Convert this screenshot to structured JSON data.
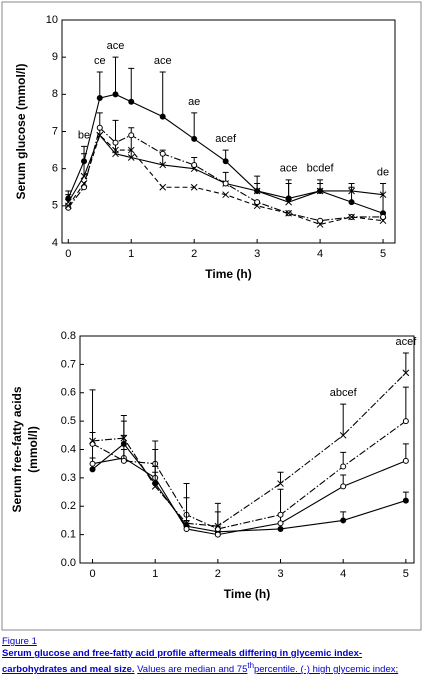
{
  "chart_data": [
    {
      "type": "line",
      "xlabel": "Time (h)",
      "ylabel": "Serum glucose (mmol/l)",
      "x": [
        0,
        0.25,
        0.5,
        0.75,
        1,
        1.5,
        2,
        2.5,
        3,
        3.5,
        4,
        4.5,
        5
      ],
      "xlim": [
        -0.1,
        5.19
      ],
      "xticks": [
        0,
        1,
        2,
        3,
        4,
        5
      ],
      "ylim": [
        4,
        10
      ],
      "yticks": [
        4,
        5,
        6,
        7,
        8,
        9,
        10
      ],
      "series": [
        {
          "color": "#000000",
          "marker": "filled",
          "dash": "solid",
          "values": [
            5.2,
            6.2,
            7.9,
            8.0,
            7.8,
            7.4,
            6.8,
            6.2,
            5.4,
            5.2,
            5.4,
            5.1,
            4.8
          ],
          "upper": [
            5.4,
            6.6,
            8.6,
            9.0,
            8.7,
            8.6,
            7.5,
            6.5,
            5.8,
            5.7,
            5.7,
            5.6,
            5.6
          ]
        },
        {
          "color": "#000000",
          "marker": "cross",
          "dash": "solid",
          "values": [
            5.1,
            5.8,
            6.9,
            6.4,
            6.3,
            6.1,
            6.0,
            5.6,
            5.4,
            5.1,
            5.4,
            5.4,
            5.3
          ],
          "upper": [
            5.3,
            6.4,
            7.5,
            7.3,
            7.1,
            6.5,
            6.3,
            5.9,
            5.6,
            5.6,
            5.6,
            5.5,
            5.6
          ]
        },
        {
          "color": "#000000",
          "marker": "open",
          "dash": "dashdot",
          "values": [
            4.95,
            5.5,
            7.1,
            6.7,
            6.9,
            6.4,
            6.1,
            5.6,
            5.1,
            4.8,
            4.6,
            4.7,
            4.7
          ]
        },
        {
          "color": "#000000",
          "marker": "cross",
          "dash": "dash",
          "values": [
            5.0,
            5.6,
            6.9,
            6.5,
            6.5,
            5.5,
            5.5,
            5.3,
            5.0,
            4.8,
            4.5,
            4.7,
            4.6
          ]
        }
      ],
      "annotations": [
        {
          "x": 0.25,
          "text": "be"
        },
        {
          "x": 0.5,
          "text": "ce"
        },
        {
          "x": 0.75,
          "text": "ace"
        },
        {
          "x": 1.5,
          "text": "ace"
        },
        {
          "x": 2,
          "text": "ae"
        },
        {
          "x": 2.5,
          "text": "acef"
        },
        {
          "x": 3.5,
          "text": "ace"
        },
        {
          "x": 4,
          "text": "bcdef"
        },
        {
          "x": 5,
          "text": "de"
        }
      ]
    },
    {
      "type": "line",
      "xlabel": "Time (h)",
      "ylabel": [
        "Serum free-fatty acids",
        "(mmol/l)"
      ],
      "x": [
        0,
        0.5,
        1,
        1.5,
        2,
        3,
        4,
        5
      ],
      "xlim": [
        -0.2,
        5.13
      ],
      "xticks": [
        0,
        1,
        2,
        3,
        4,
        5
      ],
      "ylim": [
        0,
        0.8
      ],
      "yticks": [
        {
          "value": 0,
          "label": "0.0"
        },
        0.1,
        0.2,
        0.3,
        0.4,
        0.5,
        0.6,
        0.7,
        0.8
      ],
      "series": [
        {
          "color": "#000000",
          "marker": "filled",
          "dash": "solid",
          "values": [
            0.33,
            0.42,
            0.28,
            0.13,
            0.11,
            0.12,
            0.15,
            0.22
          ],
          "upper": [
            0.37,
            0.45,
            0.32,
            0.15,
            0.13,
            0.14,
            0.18,
            0.25
          ]
        },
        {
          "color": "#000000",
          "marker": "open",
          "dash": "solid",
          "values": [
            0.35,
            0.37,
            0.3,
            0.12,
            0.1,
            0.14,
            0.27,
            0.36
          ],
          "upper": [
            0.42,
            0.4,
            0.34,
            0.14,
            0.12,
            0.17,
            0.31,
            0.42
          ]
        },
        {
          "color": "#000000",
          "marker": "open",
          "dash": "dashdot",
          "values": [
            0.42,
            0.36,
            0.35,
            0.17,
            0.12,
            0.17,
            0.34,
            0.5
          ],
          "upper": [
            0.46,
            0.5,
            0.4,
            0.23,
            0.18,
            0.26,
            0.39,
            0.62
          ]
        },
        {
          "color": "#000000",
          "marker": "cross",
          "dash": "dashdot",
          "values": [
            0.43,
            0.44,
            0.27,
            0.14,
            0.13,
            0.28,
            0.45,
            0.67
          ],
          "upper": [
            0.61,
            0.52,
            0.43,
            0.28,
            0.21,
            0.32,
            0.56,
            0.74
          ]
        }
      ],
      "annotations": [
        {
          "x": 4,
          "text": "abcef"
        },
        {
          "x": 5,
          "text": "acef"
        }
      ]
    }
  ],
  "caption": {
    "label": "Figure 1",
    "title": "Serum glucose and free-fatty acid profile aftermeals differing in glycemic index-carbohydrates and meal size.",
    "text": "Values are median and 75",
    "sup": "th",
    "text_after": "percentile. (·) high glycemic index;"
  }
}
